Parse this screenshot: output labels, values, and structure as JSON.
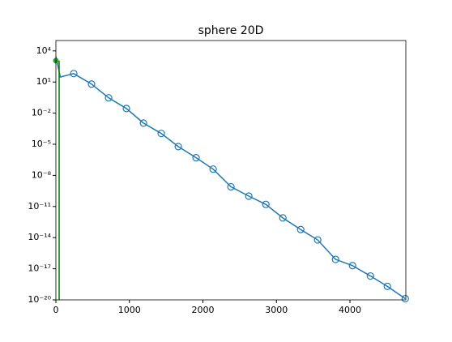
{
  "chart_data": {
    "type": "line",
    "title": "sphere 20D",
    "log_y": true,
    "xlim": [
      0,
      4760
    ],
    "ylim": [
      1e-20,
      100000.0
    ],
    "xticks": [
      0,
      1000,
      2000,
      3000,
      4000
    ],
    "yticks": [
      {
        "value": 10000.0,
        "label": "10⁴"
      },
      {
        "value": 10.0,
        "label": "10¹"
      },
      {
        "value": 0.01,
        "label": "10⁻²"
      },
      {
        "value": 1e-05,
        "label": "10⁻⁵"
      },
      {
        "value": 1e-08,
        "label": "10⁻⁸"
      },
      {
        "value": 1e-11,
        "label": "10⁻¹¹"
      },
      {
        "value": 1e-14,
        "label": "10⁻¹⁴"
      },
      {
        "value": 1e-17,
        "label": "10⁻¹⁷"
      },
      {
        "value": 1e-20,
        "label": "10⁻²⁰"
      }
    ],
    "series": [
      {
        "color": "#1f77b4",
        "marker_from": 2,
        "x": [
          0,
          60,
          243,
          485,
          717,
          959,
          1191,
          1433,
          1665,
          1907,
          2139,
          2381,
          2624,
          2856,
          3087,
          3330,
          3561,
          3804,
          4035,
          4278,
          4509,
          4752
        ],
        "values": [
          3000,
          30,
          65,
          6.3,
          0.3,
          0.028,
          0.0011,
          0.00011,
          6e-06,
          5e-07,
          4e-08,
          8e-10,
          1e-10,
          1.6e-11,
          8e-13,
          6e-14,
          6e-15,
          8e-17,
          2e-17,
          2e-18,
          2e-19,
          1.3e-20
        ]
      }
    ],
    "vline": {
      "x": 44,
      "top": 1150,
      "color": "#008000"
    },
    "point": {
      "x": 0,
      "value": 1150,
      "color": "#2ca02c"
    }
  }
}
